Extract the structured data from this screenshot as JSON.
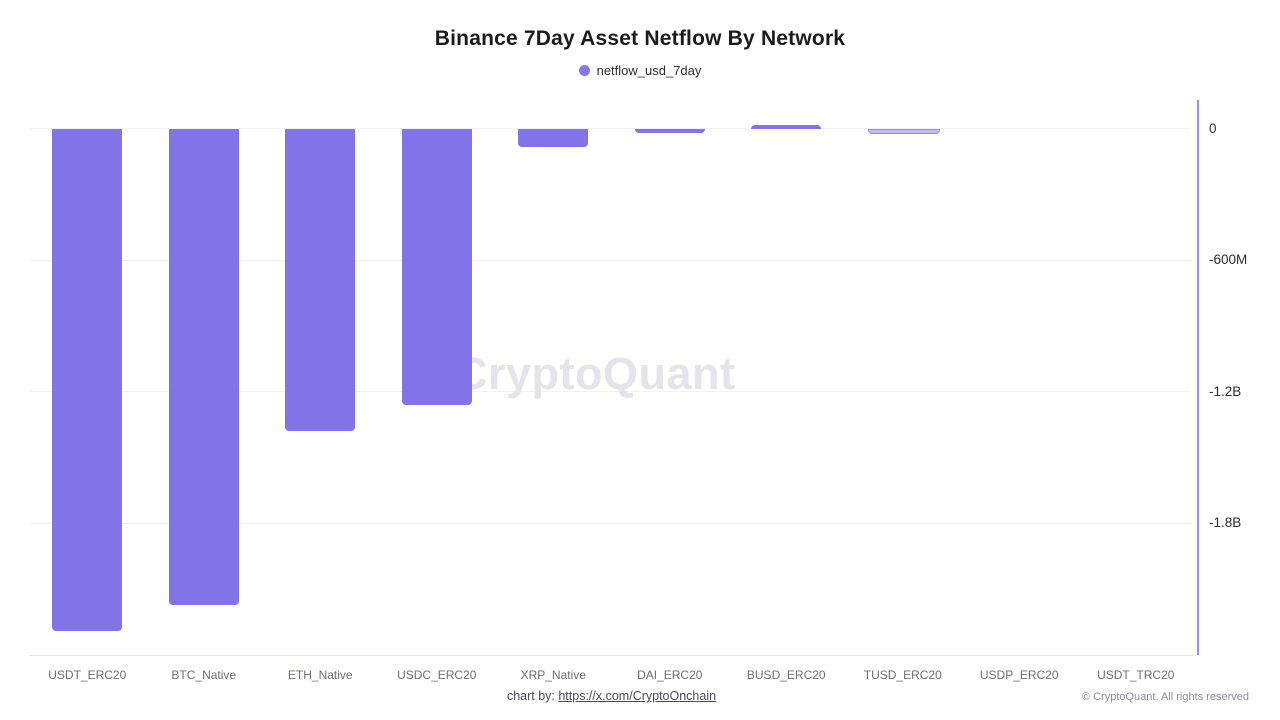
{
  "title": "Binance 7Day Asset Netflow By Network",
  "legend": {
    "label": "netflow_usd_7day",
    "marker_color": "#8777ee"
  },
  "watermark": "CryptoQuant",
  "footer": {
    "prefix": "chart by:",
    "link_text": "https://x.com/CryptoOnchain"
  },
  "copyright": "© CryptoQuant. All rights reserved",
  "chart_data": {
    "type": "bar",
    "title": "Binance 7Day Asset Netflow By Network",
    "categories": [
      "USDT_ERC20",
      "BTC_Native",
      "ETH_Native",
      "USDC_ERC20",
      "XRP_Native",
      "DAI_ERC20",
      "BUSD_ERC20",
      "TUSD_ERC20",
      "USDP_ERC20",
      "USDT_TRC20"
    ],
    "series": [
      {
        "name": "netflow_usd_7day",
        "values_usd_millions": [
          -2290,
          -2170,
          -1380,
          -1260,
          -85,
          -20,
          15,
          -5,
          0,
          0
        ]
      }
    ],
    "xlabel": "",
    "ylabel": "",
    "y_axis": {
      "side": "right",
      "ylim_millions": [
        -2400,
        130
      ],
      "ticks": [
        {
          "label": "0",
          "value_millions": 0
        },
        {
          "label": "-600M",
          "value_millions": -600
        },
        {
          "label": "-1.2B",
          "value_millions": -1200
        },
        {
          "label": "-1.8B",
          "value_millions": -1800
        }
      ]
    },
    "grid": true,
    "legend_position": "top",
    "bar_color": "#8273e9",
    "light_bar_color": "#c4baf7",
    "light_bar_border_color": "#9b8cf0",
    "light_bar_indices": [
      7
    ]
  }
}
